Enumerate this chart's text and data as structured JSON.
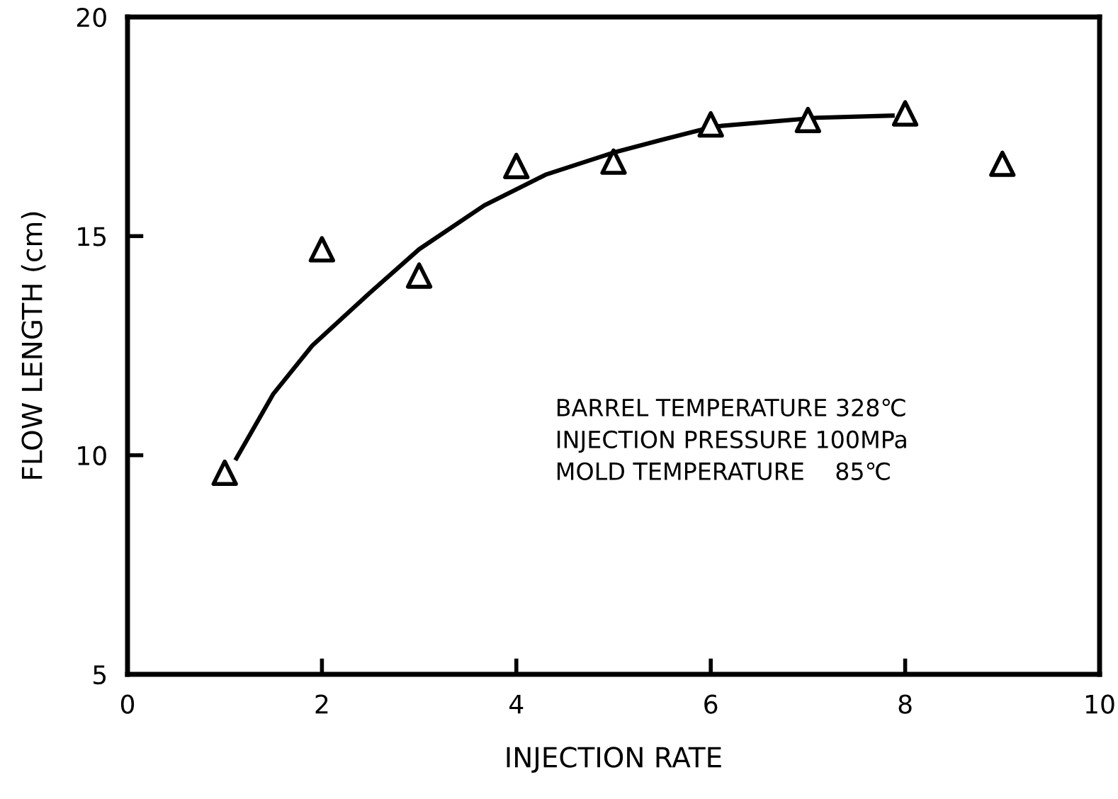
{
  "chart_data": {
    "type": "scatter",
    "xlabel": "INJECTION RATE",
    "ylabel": "FLOW LENGTH (cm)",
    "x": [
      1,
      2,
      3,
      4,
      5,
      6,
      7,
      8,
      9
    ],
    "series": [
      {
        "color": "#000000",
        "marker": "triangle",
        "values": [
          9.6,
          14.7,
          14.1,
          16.6,
          16.7,
          17.55,
          17.65,
          17.8,
          16.65
        ]
      },
      {
        "type": "line",
        "color": "#000000",
        "marker": "none",
        "x": [
          1.12,
          1.5,
          1.9,
          2.49,
          3.0,
          3.67,
          4.3,
          4.99,
          5.5,
          6.03,
          7.09,
          7.87
        ],
        "values": [
          9.93,
          11.4,
          12.5,
          13.7,
          14.7,
          15.7,
          16.4,
          16.9,
          17.2,
          17.5,
          17.7,
          17.75
        ]
      }
    ],
    "xlim": [
      0,
      10
    ],
    "xticks": [
      0,
      2,
      4,
      6,
      8,
      10
    ],
    "ylim": [
      5,
      20
    ],
    "yticks": [
      5,
      10,
      15,
      20
    ],
    "grid": false,
    "legend": false,
    "annotations": [
      "BARREL TEMPERATURE 328℃\nINJECTION PRESSURE 100MPa\nMOLD TEMPERATURE    85℃"
    ]
  }
}
